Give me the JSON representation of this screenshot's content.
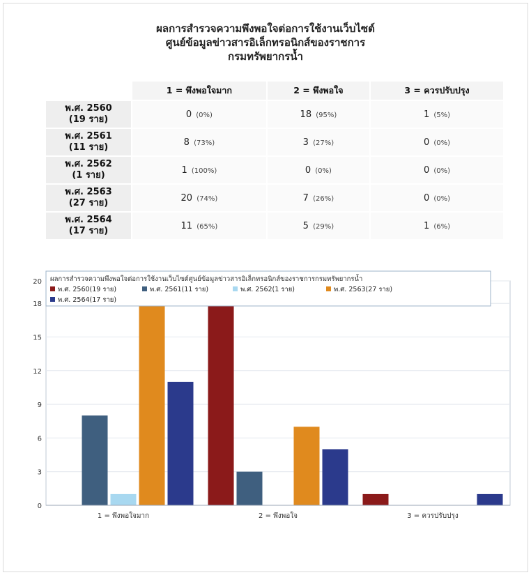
{
  "header": {
    "title_lines": [
      "ผลการสำรวจความพึงพอใจต่อการใช้งานเว็บไซต์",
      "ศูนย์ข้อมูลข่าวสารอิเล็กทรอนิกส์ของราชการ",
      "กรมทรัพยากรน้ำ"
    ]
  },
  "summary_table": {
    "columns": [
      "1 = พึงพอใจมาก",
      "2 = พึงพอใจ",
      "3 = ควรปรับปรุง"
    ],
    "rows": [
      {
        "year": "พ.ศ. 2560",
        "count": "(19 ราย)",
        "cells": [
          {
            "n": "0",
            "pct": "(0%)"
          },
          {
            "n": "18",
            "pct": "(95%)"
          },
          {
            "n": "1",
            "pct": "(5%)"
          }
        ]
      },
      {
        "year": "พ.ศ. 2561",
        "count": "(11 ราย)",
        "cells": [
          {
            "n": "8",
            "pct": "(73%)"
          },
          {
            "n": "3",
            "pct": "(27%)"
          },
          {
            "n": "0",
            "pct": "(0%)"
          }
        ]
      },
      {
        "year": "พ.ศ. 2562",
        "count": "(1 ราย)",
        "cells": [
          {
            "n": "1",
            "pct": "(100%)"
          },
          {
            "n": "0",
            "pct": "(0%)"
          },
          {
            "n": "0",
            "pct": "(0%)"
          }
        ]
      },
      {
        "year": "พ.ศ. 2563",
        "count": "(27 ราย)",
        "cells": [
          {
            "n": "20",
            "pct": "(74%)"
          },
          {
            "n": "7",
            "pct": "(26%)"
          },
          {
            "n": "0",
            "pct": "(0%)"
          }
        ]
      },
      {
        "year": "พ.ศ. 2564",
        "count": "(17 ราย)",
        "cells": [
          {
            "n": "11",
            "pct": "(65%)"
          },
          {
            "n": "5",
            "pct": "(29%)"
          },
          {
            "n": "1",
            "pct": "(6%)"
          }
        ]
      }
    ]
  },
  "chart_data": {
    "type": "bar",
    "title": "ผลการสำรวจความพึงพอใจต่อการใช้งานเว็บไซต์ศูนย์ข้อมูลข่าวสารอิเล็กทรอนิกส์ของราชการกรมทรัพยากรน้ำ",
    "categories": [
      "1 = พึงพอใจมาก",
      "2 = พึงพอใจ",
      "3 = ควรปรับปรุง"
    ],
    "series": [
      {
        "name": "พ.ศ. 2560(19 ราย)",
        "color": "#8b1a1a",
        "values": [
          0,
          18,
          1
        ]
      },
      {
        "name": "พ.ศ. 2561(11 ราย)",
        "color": "#3f5f7f",
        "values": [
          8,
          3,
          0
        ]
      },
      {
        "name": "พ.ศ. 2562(1 ราย)",
        "color": "#a8d8f0",
        "values": [
          1,
          0,
          0
        ]
      },
      {
        "name": "พ.ศ. 2563(27 ราย)",
        "color": "#e08a1e",
        "values": [
          20,
          7,
          0
        ]
      },
      {
        "name": "พ.ศ. 2564(17 ราย)",
        "color": "#2b3a8c",
        "values": [
          11,
          5,
          1
        ]
      }
    ],
    "yticks": [
      "0",
      "3",
      "6",
      "9",
      "12",
      "15",
      "18",
      "20"
    ],
    "ylim": [
      0,
      20
    ],
    "grid": true,
    "legend_position": "top"
  }
}
